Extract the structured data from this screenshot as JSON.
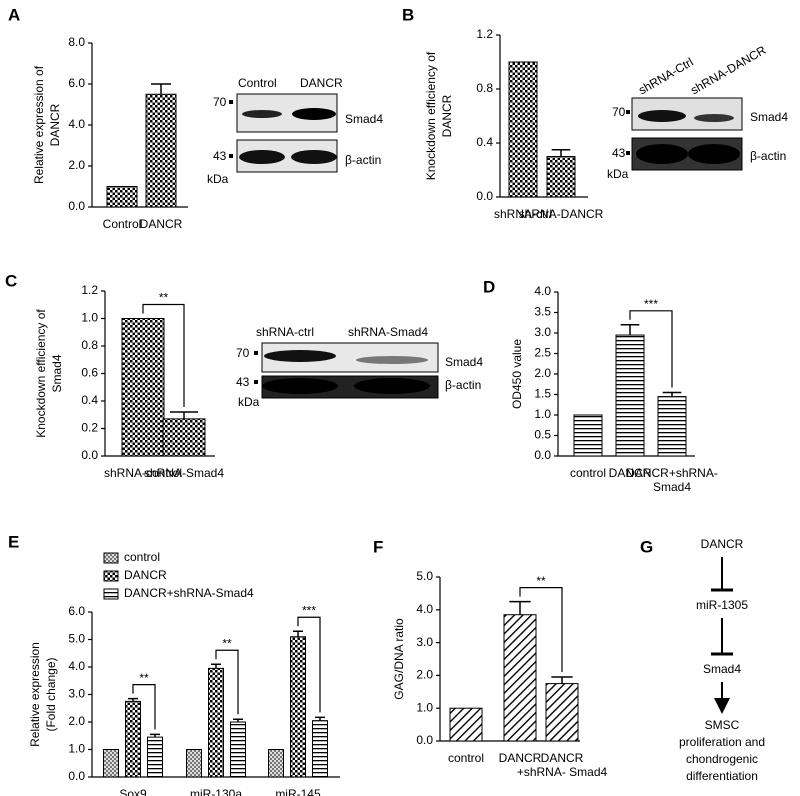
{
  "panel_labels": [
    "A",
    "B",
    "C",
    "D",
    "E",
    "F",
    "G"
  ],
  "chart_data": [
    {
      "type": "bar",
      "y_label": [
        "Relative expression of",
        "DANCR"
      ],
      "categories": [
        "Control",
        "DANCR"
      ],
      "values": [
        1,
        5.5
      ],
      "errors": [
        0,
        0.5
      ],
      "pattern": "checker",
      "color": "#000000",
      "ylim": [
        0,
        8
      ],
      "yticks": [
        {
          "value": 0,
          "label": "0.0"
        },
        {
          "value": 2,
          "label": "2.0"
        },
        {
          "value": 4,
          "label": "4.0"
        },
        {
          "value": 6,
          "label": "6.0"
        },
        {
          "value": 8,
          "label": "8.0"
        }
      ],
      "annotations": []
    },
    {
      "type": "bar",
      "y_label": [
        "Knockdown efficiency of",
        "DANCR"
      ],
      "categories": [
        "shRNA-ctrl",
        "shRNA-DANCR"
      ],
      "values": [
        1,
        0.3
      ],
      "errors": [
        0,
        0.05
      ],
      "pattern": "checker",
      "color": "#000000",
      "ylim": [
        0,
        1.2
      ],
      "yticks": [
        {
          "value": 0,
          "label": "0.0"
        },
        0.4,
        0.8,
        1.2
      ],
      "annotations": []
    },
    {
      "type": "bar",
      "y_label": [
        "Knockdown efficiency of",
        "Smad4"
      ],
      "categories": [
        "shRNA-control",
        "shRNA-Smad4"
      ],
      "values": [
        1,
        0.27
      ],
      "errors": [
        0,
        0.05
      ],
      "pattern": "checker",
      "color": "#000000",
      "ylim": [
        0,
        1.2
      ],
      "yticks": [
        {
          "value": 0,
          "label": "0.0"
        },
        0.2,
        0.4,
        0.6,
        0.8,
        {
          "value": 1,
          "label": "1.0"
        },
        1.2
      ],
      "annotations": [
        "**"
      ]
    },
    {
      "type": "bar",
      "y_label": [
        "OD450  value"
      ],
      "categories": [
        "control",
        "DANCR",
        [
          "DANCR+shRNA-",
          "Smad4"
        ]
      ],
      "values": [
        1,
        2.95,
        1.45
      ],
      "errors": [
        0,
        0.25,
        0.1
      ],
      "pattern": "hstripe",
      "color": "#000000",
      "ylim": [
        0,
        4
      ],
      "yticks": [
        {
          "value": 0,
          "label": "0.0"
        },
        0.5,
        {
          "value": 1,
          "label": "1.0"
        },
        1.5,
        {
          "value": 2,
          "label": "2.0"
        },
        2.5,
        {
          "value": 3,
          "label": "3.0"
        },
        3.5,
        {
          "value": 4,
          "label": "4.0"
        }
      ],
      "annotations": [
        "***"
      ]
    },
    {
      "type": "grouped-bar",
      "y_label": [
        "Relative expression",
        "(Fold change)"
      ],
      "categories": [
        "Sox9",
        "miR-130a",
        "miR-145"
      ],
      "series": [
        {
          "name": "control",
          "pattern": "lightgrid",
          "color": "#000000",
          "values": [
            1,
            1,
            1
          ],
          "errors": [
            0,
            0,
            0
          ]
        },
        {
          "name": "DANCR",
          "pattern": "checker",
          "color": "#000000",
          "values": [
            2.75,
            3.95,
            5.1
          ],
          "errors": [
            0.1,
            0.15,
            0.2
          ]
        },
        {
          "name": "DANCR+shRNA-Smad4",
          "pattern": "hstripe",
          "color": "#000000",
          "values": [
            1.45,
            2.0,
            2.05
          ],
          "errors": [
            0.1,
            0.1,
            0.12
          ]
        }
      ],
      "ylim": [
        0,
        6
      ],
      "yticks": [
        {
          "value": 0,
          "label": "0.0"
        },
        {
          "value": 1,
          "label": "1.0"
        },
        {
          "value": 2,
          "label": "2.0"
        },
        {
          "value": 3,
          "label": "3.0"
        },
        {
          "value": 4,
          "label": "4.0"
        },
        {
          "value": 5,
          "label": "5.0"
        },
        {
          "value": 6,
          "label": "6.0"
        }
      ],
      "annotations": [
        "**",
        "**",
        "***"
      ],
      "legend": "top-left"
    },
    {
      "type": "bar",
      "y_label": [
        "GAG/DNA ratio"
      ],
      "categories": [
        "control",
        "DANCR",
        [
          "DANCR",
          "+shRNA- Smad4"
        ]
      ],
      "values": [
        1,
        3.85,
        1.75
      ],
      "errors": [
        0,
        0.4,
        0.2
      ],
      "pattern": "diag",
      "color": "#000000",
      "ylim": [
        0,
        5
      ],
      "yticks": [
        {
          "value": 0,
          "label": "0.0"
        },
        {
          "value": 1,
          "label": "1.0"
        },
        {
          "value": 2,
          "label": "2.0"
        },
        {
          "value": 3,
          "label": "3.0"
        },
        {
          "value": 4,
          "label": "4.0"
        },
        {
          "value": 5,
          "label": "5.0"
        }
      ],
      "annotations": [
        "**"
      ]
    }
  ],
  "blots": {
    "A": {
      "lanes": [
        "Control",
        "DANCR"
      ],
      "markers": [
        "70",
        "43"
      ],
      "proteins": [
        "Smad4",
        "β-actin"
      ],
      "unit": "kDa"
    },
    "B": {
      "lanes": [
        "shRNA-Ctrl",
        "shRNA-DANCR"
      ],
      "markers": [
        "70",
        "43"
      ],
      "proteins": [
        "Smad4",
        "β-actin"
      ],
      "unit": "kDa"
    },
    "C": {
      "lanes": [
        "shRNA-ctrl",
        "shRNA-Smad4"
      ],
      "markers": [
        "70",
        "43"
      ],
      "proteins": [
        "Smad4",
        "β-actin"
      ],
      "unit": "kDa"
    }
  },
  "diagram": {
    "nodes": [
      "DANCR",
      "miR-1305",
      "Smad4",
      [
        "SMSC",
        "proliferation and",
        "chondrogenic",
        "differentiation"
      ]
    ]
  }
}
